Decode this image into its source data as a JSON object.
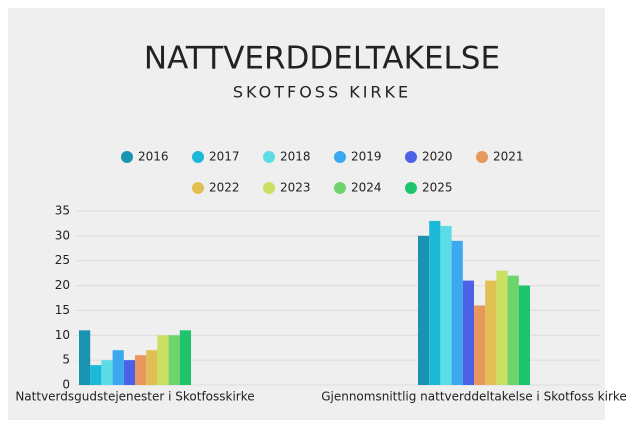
{
  "chart_data": {
    "type": "bar",
    "title": "NATTVERDDELTAKELSE",
    "subtitle": "SKOTFOSS KIRKE",
    "categories": [
      "Nattverdsgudstejenester i Skotfosskirke",
      "Gjennomsnittlig nattverddeltakelse i Skotfoss kirke"
    ],
    "series": [
      {
        "name": "2016",
        "color": "#1a93b0",
        "values": [
          11,
          30
        ]
      },
      {
        "name": "2017",
        "color": "#1bb8d8",
        "values": [
          4,
          33
        ]
      },
      {
        "name": "2018",
        "color": "#5cdde6",
        "values": [
          5,
          32
        ]
      },
      {
        "name": "2019",
        "color": "#3ba9f0",
        "values": [
          7,
          29
        ]
      },
      {
        "name": "2020",
        "color": "#4b62e6",
        "values": [
          5,
          21
        ]
      },
      {
        "name": "2021",
        "color": "#e8975e",
        "values": [
          6,
          16
        ]
      },
      {
        "name": "2022",
        "color": "#e1c053",
        "values": [
          7,
          21
        ]
      },
      {
        "name": "2023",
        "color": "#c9e063",
        "values": [
          10,
          23
        ]
      },
      {
        "name": "2024",
        "color": "#6fd46e",
        "values": [
          10,
          22
        ]
      },
      {
        "name": "2025",
        "color": "#1ec46b",
        "values": [
          11,
          20
        ]
      }
    ],
    "ylim": [
      0,
      35
    ],
    "yticks": [
      0,
      5,
      10,
      15,
      20,
      25,
      30,
      35
    ],
    "grid": true,
    "legend": "top"
  }
}
